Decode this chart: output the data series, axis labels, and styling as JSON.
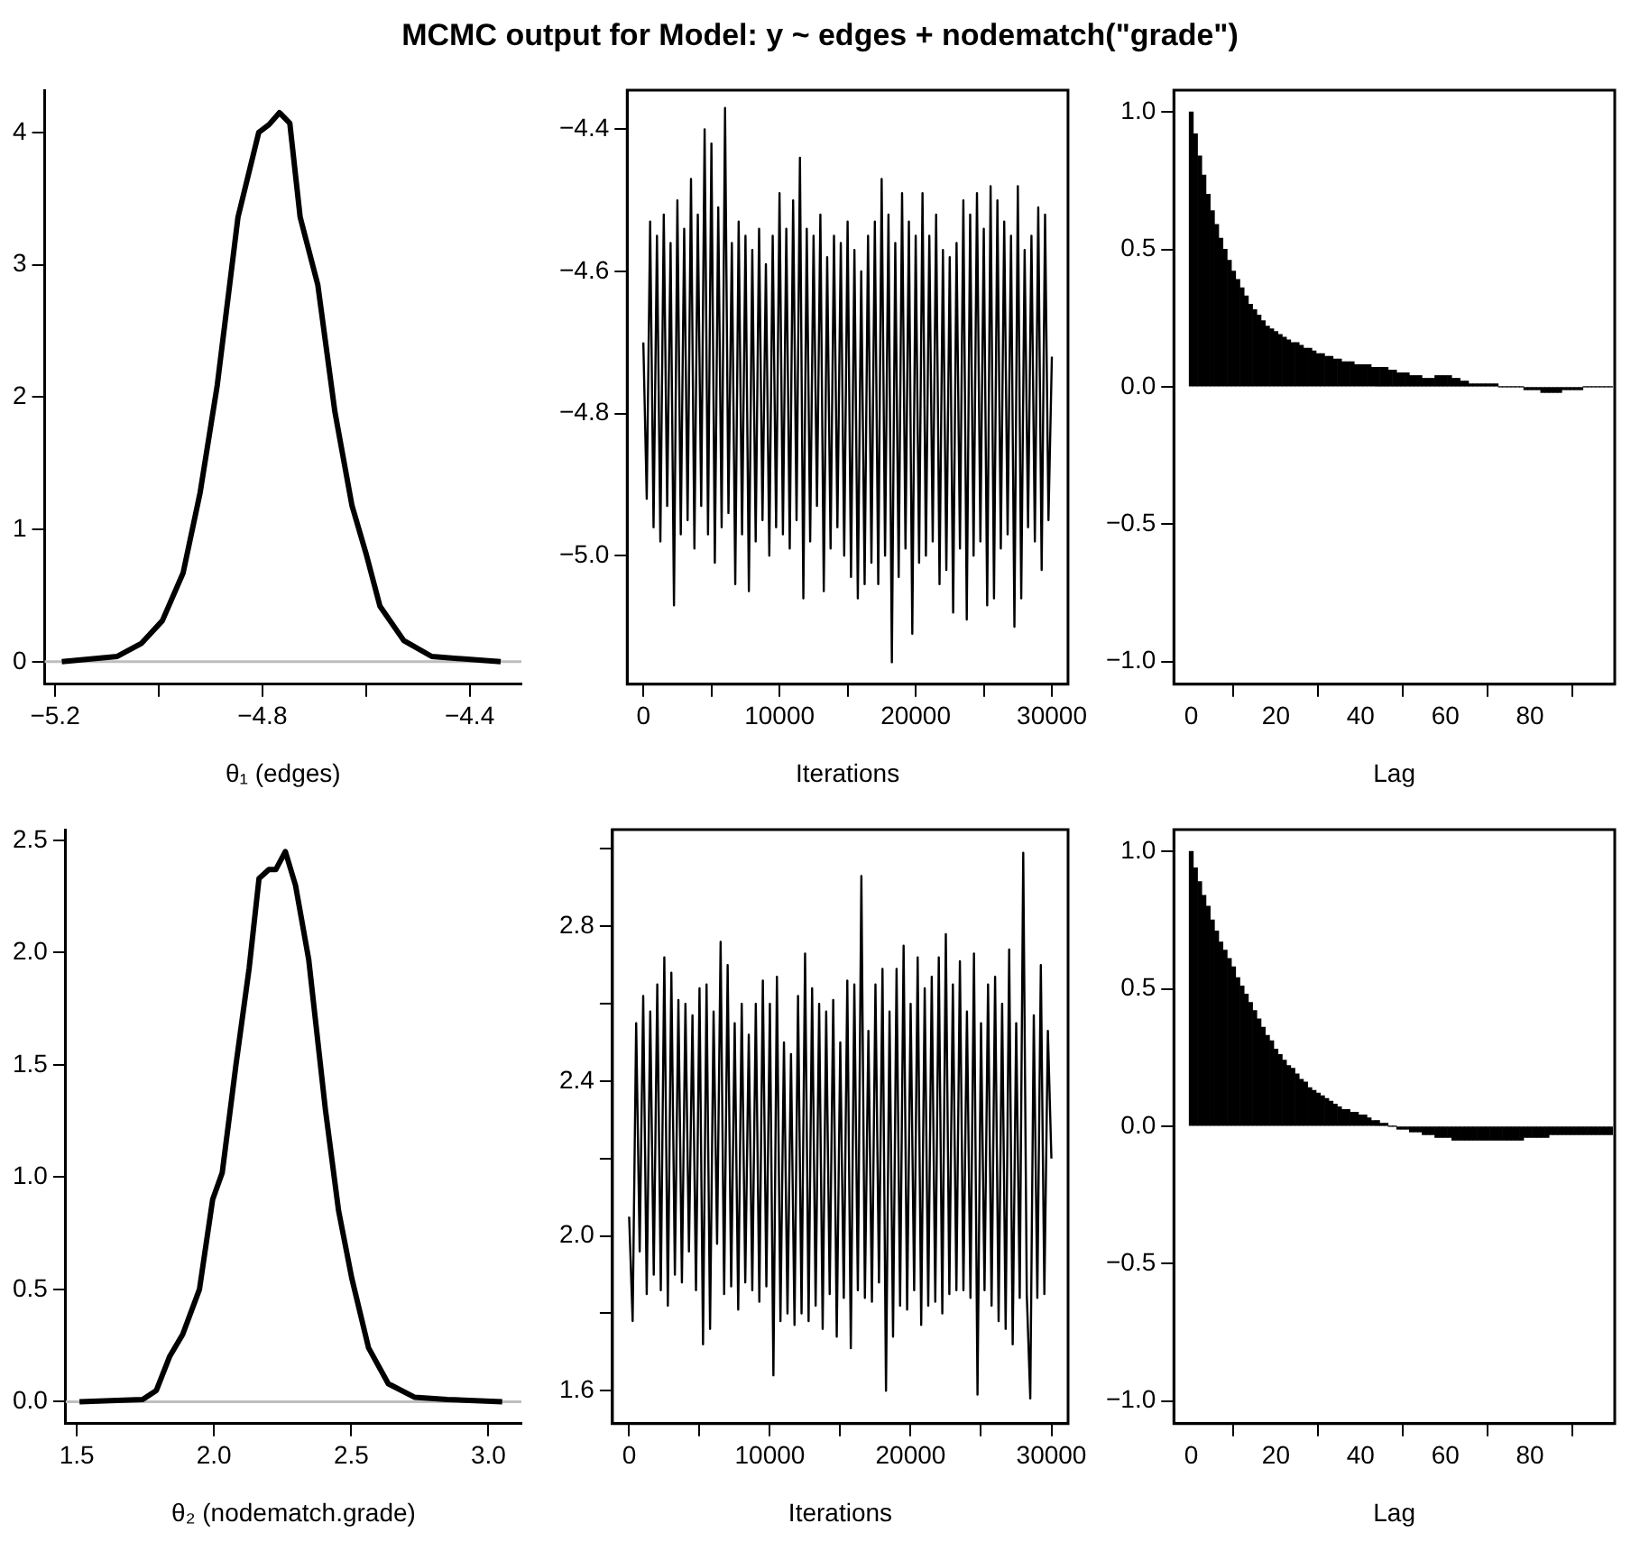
{
  "chart_data": [
    {
      "type": "line",
      "title": "MCMC output for Model: y ~ edges + nodematch(\"grade\")",
      "xlabel": "θ₁ (edges)",
      "marker": "none",
      "legend": false,
      "grid": false,
      "x": [
        -5.187,
        -5.08,
        -5.033,
        -4.993,
        -4.953,
        -4.92,
        -4.887,
        -4.847,
        -4.807,
        -4.787,
        -4.767,
        -4.747,
        -4.727,
        -4.693,
        -4.66,
        -4.627,
        -4.6,
        -4.573,
        -4.527,
        -4.473,
        -4.34
      ],
      "series": [
        {
          "color": "#000000",
          "values": [
            0.0,
            0.04,
            0.14,
            0.31,
            0.67,
            1.28,
            2.09,
            3.36,
            4.0,
            4.06,
            4.15,
            4.07,
            3.36,
            2.85,
            1.89,
            1.18,
            0.82,
            0.42,
            0.16,
            0.04,
            0.0
          ]
        }
      ],
      "xlim": [
        -5.22,
        -4.3
      ],
      "ylim": [
        -0.17,
        4.32
      ],
      "xticks": [
        {
          "value": -5.2,
          "label": "−5.2"
        },
        {
          "value": -5.0,
          "label": null
        },
        {
          "value": -4.8,
          "label": "−4.8"
        },
        {
          "value": -4.6,
          "label": null
        },
        {
          "value": -4.4,
          "label": "−4.4"
        }
      ],
      "yticks": [
        0,
        1,
        2,
        3,
        4
      ],
      "ref_lines": [
        {
          "axis": "y",
          "value": 0,
          "color": "#bebebe"
        }
      ]
    },
    {
      "type": "line",
      "xlabel": "Iterations",
      "marker": "none",
      "legend": false,
      "grid": false,
      "x": [
        0,
        250,
        500,
        750,
        1000,
        1250,
        1500,
        1750,
        2000,
        2250,
        2500,
        2750,
        3000,
        3250,
        3500,
        3750,
        4000,
        4250,
        4500,
        4750,
        5000,
        5250,
        5500,
        5750,
        6000,
        6250,
        6500,
        6750,
        7000,
        7250,
        7500,
        7750,
        8000,
        8250,
        8500,
        8750,
        9000,
        9250,
        9500,
        9750,
        10000,
        10250,
        10500,
        10750,
        11000,
        11250,
        11500,
        11750,
        12000,
        12250,
        12500,
        12750,
        13000,
        13250,
        13500,
        13750,
        14000,
        14250,
        14500,
        14750,
        15000,
        15250,
        15500,
        15750,
        16000,
        16250,
        16500,
        16750,
        17000,
        17250,
        17500,
        17750,
        18000,
        18250,
        18500,
        18750,
        19000,
        19250,
        19500,
        19750,
        20000,
        20250,
        20500,
        20750,
        21000,
        21250,
        21500,
        21750,
        22000,
        22250,
        22500,
        22750,
        23000,
        23250,
        23500,
        23750,
        24000,
        24250,
        24500,
        24750,
        25000,
        25250,
        25500,
        25750,
        26000,
        26250,
        26500,
        26750,
        27000,
        27250,
        27500,
        27750,
        28000,
        28250,
        28500,
        28750,
        29000,
        29250,
        29500,
        29750,
        30000
      ],
      "series": [
        {
          "color": "#000000",
          "values": [
            -4.7,
            -4.92,
            -4.53,
            -4.96,
            -4.55,
            -4.98,
            -4.52,
            -4.93,
            -4.56,
            -5.07,
            -4.5,
            -4.97,
            -4.54,
            -4.95,
            -4.47,
            -4.99,
            -4.52,
            -4.93,
            -4.4,
            -4.97,
            -4.42,
            -5.01,
            -4.51,
            -4.96,
            -4.37,
            -4.94,
            -4.56,
            -5.04,
            -4.53,
            -4.97,
            -4.55,
            -5.05,
            -4.57,
            -4.98,
            -4.54,
            -4.95,
            -4.59,
            -5.0,
            -4.55,
            -4.96,
            -4.49,
            -4.97,
            -4.54,
            -4.99,
            -4.5,
            -4.95,
            -4.44,
            -5.06,
            -4.54,
            -4.98,
            -4.55,
            -4.93,
            -4.52,
            -5.05,
            -4.58,
            -4.99,
            -4.55,
            -4.96,
            -4.56,
            -5.0,
            -4.53,
            -5.03,
            -4.57,
            -5.06,
            -4.6,
            -5.04,
            -4.55,
            -5.01,
            -4.53,
            -5.04,
            -4.47,
            -5.0,
            -4.52,
            -5.15,
            -4.56,
            -5.03,
            -4.49,
            -4.99,
            -4.53,
            -5.11,
            -4.55,
            -5.01,
            -4.49,
            -5.0,
            -4.55,
            -4.98,
            -4.52,
            -5.04,
            -4.57,
            -5.02,
            -4.58,
            -5.08,
            -4.56,
            -4.99,
            -4.5,
            -5.09,
            -4.52,
            -5.0,
            -4.49,
            -4.98,
            -4.54,
            -5.07,
            -4.48,
            -5.06,
            -4.5,
            -4.99,
            -4.53,
            -4.97,
            -4.55,
            -5.1,
            -4.48,
            -5.06,
            -4.57,
            -4.96,
            -4.55,
            -4.98,
            -4.51,
            -5.02,
            -4.52,
            -4.95,
            -4.72
          ]
        }
      ],
      "xlim": [
        -1185,
        31185
      ],
      "ylim": [
        -5.181,
        -4.345
      ],
      "xticks": [
        0,
        {
          "value": 5000,
          "label": null
        },
        10000,
        {
          "value": 15000,
          "label": null
        },
        20000,
        {
          "value": 25000,
          "label": null
        },
        30000
      ],
      "yticks": [
        {
          "value": -5.0,
          "label": "−5.0"
        },
        {
          "value": -4.8,
          "label": "−4.8"
        },
        {
          "value": -4.6,
          "label": "−4.6"
        },
        {
          "value": -4.4,
          "label": "−4.4"
        }
      ]
    },
    {
      "type": "bar",
      "xlabel": "Lag",
      "legend": false,
      "grid": false,
      "x": [
        0,
        1,
        2,
        3,
        4,
        5,
        6,
        7,
        8,
        9,
        10,
        11,
        12,
        13,
        14,
        15,
        16,
        17,
        18,
        19,
        20,
        21,
        22,
        23,
        24,
        25,
        26,
        27,
        28,
        29,
        30,
        31,
        32,
        33,
        34,
        35,
        36,
        37,
        38,
        39,
        40,
        41,
        42,
        43,
        44,
        45,
        46,
        47,
        48,
        49,
        50,
        51,
        52,
        53,
        54,
        55,
        56,
        57,
        58,
        59,
        60,
        61,
        62,
        63,
        64,
        65,
        66,
        67,
        68,
        69,
        70,
        71,
        72,
        73,
        74,
        75,
        76,
        77,
        78,
        79,
        80,
        81,
        82,
        83,
        84,
        85,
        86,
        87,
        88,
        89,
        90,
        91,
        92,
        93,
        94,
        95,
        96,
        97,
        98,
        99
      ],
      "series": [
        {
          "color": "#000000",
          "values": [
            1.0,
            0.92,
            0.84,
            0.77,
            0.7,
            0.64,
            0.59,
            0.54,
            0.5,
            0.46,
            0.42,
            0.39,
            0.36,
            0.33,
            0.3,
            0.28,
            0.26,
            0.24,
            0.22,
            0.21,
            0.2,
            0.19,
            0.18,
            0.17,
            0.16,
            0.16,
            0.15,
            0.14,
            0.14,
            0.13,
            0.12,
            0.12,
            0.11,
            0.11,
            0.1,
            0.1,
            0.09,
            0.09,
            0.09,
            0.08,
            0.08,
            0.08,
            0.08,
            0.07,
            0.07,
            0.07,
            0.07,
            0.06,
            0.06,
            0.05,
            0.05,
            0.05,
            0.04,
            0.04,
            0.04,
            0.03,
            0.03,
            0.03,
            0.04,
            0.04,
            0.04,
            0.04,
            0.03,
            0.03,
            0.02,
            0.02,
            0.01,
            0.01,
            0.01,
            0.01,
            0.01,
            0.01,
            0.01,
            0.0,
            0.0,
            0.0,
            0.0,
            0.0,
            0.0,
            -0.01,
            -0.01,
            -0.01,
            -0.01,
            -0.02,
            -0.02,
            -0.02,
            -0.02,
            -0.02,
            -0.01,
            -0.01,
            -0.01,
            -0.01,
            -0.01,
            0.0,
            0.0,
            0.0,
            0.0,
            0.0,
            0.0,
            0.0
          ]
        }
      ],
      "xlim": [
        -4.1,
        100
      ],
      "ylim": [
        -1.083,
        1.08
      ],
      "xticks": [
        0,
        20,
        40,
        60,
        80
      ],
      "yticks": [
        {
          "value": -1,
          "label": "−1.0"
        },
        {
          "value": -0.5,
          "label": "−0.5"
        },
        {
          "value": 0,
          "label": "0.0"
        },
        {
          "value": 0.5,
          "label": "0.5"
        },
        {
          "value": 1,
          "label": "1.0"
        }
      ]
    },
    {
      "type": "line",
      "xlabel": "θ₂ (nodematch.grade)",
      "marker": "none",
      "legend": false,
      "grid": false,
      "x": [
        1.51,
        1.74,
        1.79,
        1.838,
        1.886,
        1.947,
        1.995,
        2.03,
        2.08,
        2.128,
        2.164,
        2.2,
        2.225,
        2.26,
        2.297,
        2.345,
        2.406,
        2.454,
        2.502,
        2.563,
        2.635,
        2.73,
        2.85,
        3.05
      ],
      "series": [
        {
          "color": "#000000",
          "values": [
            0.0,
            0.01,
            0.05,
            0.2,
            0.3,
            0.5,
            0.9,
            1.02,
            1.5,
            1.93,
            2.33,
            2.37,
            2.37,
            2.45,
            2.3,
            1.97,
            1.3,
            0.85,
            0.55,
            0.24,
            0.08,
            0.02,
            0.01,
            0.0
          ]
        }
      ],
      "xlim": [
        1.46,
        3.12
      ],
      "ylim": [
        -0.098,
        2.548
      ],
      "xticks": [
        1.5,
        {
          "value": 2.0,
          "label": "2.0"
        },
        2.5,
        {
          "value": 3.0,
          "label": "3.0"
        }
      ],
      "yticks": [
        {
          "value": 0,
          "label": "0.0"
        },
        0.5,
        {
          "value": 1,
          "label": "1.0"
        },
        1.5,
        {
          "value": 2,
          "label": "2.0"
        },
        2.5
      ],
      "ref_lines": [
        {
          "axis": "y",
          "value": 0,
          "color": "#bebebe"
        }
      ]
    },
    {
      "type": "line",
      "xlabel": "Iterations",
      "marker": "none",
      "legend": false,
      "grid": false,
      "x": [
        0,
        250,
        500,
        750,
        1000,
        1250,
        1500,
        1750,
        2000,
        2250,
        2500,
        2750,
        3000,
        3250,
        3500,
        3750,
        4000,
        4250,
        4500,
        4750,
        5000,
        5250,
        5500,
        5750,
        6000,
        6250,
        6500,
        6750,
        7000,
        7250,
        7500,
        7750,
        8000,
        8250,
        8500,
        8750,
        9000,
        9250,
        9500,
        9750,
        10000,
        10250,
        10500,
        10750,
        11000,
        11250,
        11500,
        11750,
        12000,
        12250,
        12500,
        12750,
        13000,
        13250,
        13500,
        13750,
        14000,
        14250,
        14500,
        14750,
        15000,
        15250,
        15500,
        15750,
        16000,
        16250,
        16500,
        16750,
        17000,
        17250,
        17500,
        17750,
        18000,
        18250,
        18500,
        18750,
        19000,
        19250,
        19500,
        19750,
        20000,
        20250,
        20500,
        20750,
        21000,
        21250,
        21500,
        21750,
        22000,
        22250,
        22500,
        22750,
        23000,
        23250,
        23500,
        23750,
        24000,
        24250,
        24500,
        24750,
        25000,
        25250,
        25500,
        25750,
        26000,
        26250,
        26500,
        26750,
        27000,
        27250,
        27500,
        27750,
        28000,
        28250,
        28500,
        28750,
        29000,
        29250,
        29500,
        29750,
        30000
      ],
      "series": [
        {
          "color": "#000000",
          "values": [
            2.05,
            1.78,
            2.55,
            1.96,
            2.62,
            1.85,
            2.58,
            1.9,
            2.65,
            1.86,
            2.72,
            1.82,
            2.68,
            1.9,
            2.61,
            1.88,
            2.6,
            1.96,
            2.57,
            1.86,
            2.64,
            1.72,
            2.65,
            1.76,
            2.58,
            1.98,
            2.76,
            1.85,
            2.7,
            1.87,
            2.55,
            1.81,
            2.6,
            1.88,
            2.52,
            1.86,
            2.6,
            1.83,
            2.66,
            1.87,
            2.6,
            1.64,
            2.67,
            1.78,
            2.5,
            1.8,
            2.47,
            1.77,
            2.62,
            1.8,
            2.73,
            1.78,
            2.64,
            1.82,
            2.6,
            1.76,
            2.58,
            1.85,
            2.61,
            1.74,
            2.5,
            1.84,
            2.66,
            1.71,
            2.65,
            1.86,
            2.93,
            1.84,
            2.53,
            1.83,
            2.65,
            1.88,
            2.69,
            1.6,
            2.58,
            1.74,
            2.69,
            1.82,
            2.75,
            1.81,
            2.6,
            1.86,
            2.72,
            1.77,
            2.64,
            1.82,
            2.67,
            1.83,
            2.72,
            1.8,
            2.78,
            1.85,
            2.65,
            1.86,
            2.71,
            1.86,
            2.58,
            1.84,
            2.73,
            1.59,
            2.55,
            1.86,
            2.65,
            1.82,
            2.67,
            1.78,
            2.6,
            1.76,
            2.74,
            1.72,
            2.55,
            1.84,
            2.99,
            1.85,
            1.58,
            2.57,
            1.84,
            2.7,
            1.85,
            2.53,
            2.2
          ]
        }
      ],
      "xlim": [
        -1185,
        31185
      ],
      "ylim": [
        1.515,
        3.05
      ],
      "xticks": [
        0,
        {
          "value": 5000,
          "label": null
        },
        10000,
        {
          "value": 15000,
          "label": null
        },
        20000,
        {
          "value": 25000,
          "label": null
        },
        30000
      ],
      "yticks": [
        1.6,
        {
          "value": 1.8,
          "label": null
        },
        {
          "value": 2.0,
          "label": "2.0"
        },
        {
          "value": 2.2,
          "label": null
        },
        2.4,
        {
          "value": 2.6,
          "label": null
        },
        2.8,
        {
          "value": 3.0,
          "label": null
        }
      ]
    },
    {
      "type": "bar",
      "xlabel": "Lag",
      "legend": false,
      "grid": false,
      "x": [
        0,
        1,
        2,
        3,
        4,
        5,
        6,
        7,
        8,
        9,
        10,
        11,
        12,
        13,
        14,
        15,
        16,
        17,
        18,
        19,
        20,
        21,
        22,
        23,
        24,
        25,
        26,
        27,
        28,
        29,
        30,
        31,
        32,
        33,
        34,
        35,
        36,
        37,
        38,
        39,
        40,
        41,
        42,
        43,
        44,
        45,
        46,
        47,
        48,
        49,
        50,
        51,
        52,
        53,
        54,
        55,
        56,
        57,
        58,
        59,
        60,
        61,
        62,
        63,
        64,
        65,
        66,
        67,
        68,
        69,
        70,
        71,
        72,
        73,
        74,
        75,
        76,
        77,
        78,
        79,
        80,
        81,
        82,
        83,
        84,
        85,
        86,
        87,
        88,
        89,
        90,
        91,
        92,
        93,
        94,
        95,
        96,
        97,
        98,
        99
      ],
      "series": [
        {
          "color": "#000000",
          "values": [
            1.0,
            0.94,
            0.89,
            0.84,
            0.8,
            0.75,
            0.71,
            0.67,
            0.64,
            0.61,
            0.58,
            0.54,
            0.51,
            0.48,
            0.45,
            0.42,
            0.39,
            0.36,
            0.33,
            0.31,
            0.28,
            0.26,
            0.24,
            0.22,
            0.21,
            0.19,
            0.17,
            0.16,
            0.14,
            0.13,
            0.12,
            0.11,
            0.1,
            0.09,
            0.08,
            0.07,
            0.06,
            0.06,
            0.05,
            0.05,
            0.04,
            0.04,
            0.03,
            0.02,
            0.02,
            0.01,
            0.01,
            0.0,
            0.0,
            -0.01,
            -0.01,
            -0.01,
            -0.02,
            -0.02,
            -0.02,
            -0.03,
            -0.03,
            -0.03,
            -0.04,
            -0.04,
            -0.04,
            -0.04,
            -0.05,
            -0.05,
            -0.05,
            -0.05,
            -0.05,
            -0.05,
            -0.05,
            -0.05,
            -0.05,
            -0.05,
            -0.05,
            -0.05,
            -0.05,
            -0.05,
            -0.05,
            -0.05,
            -0.05,
            -0.04,
            -0.04,
            -0.04,
            -0.04,
            -0.04,
            -0.04,
            -0.03,
            -0.03,
            -0.03,
            -0.03,
            -0.03,
            -0.03,
            -0.03,
            -0.03,
            -0.03,
            -0.03,
            -0.03,
            -0.03,
            -0.03,
            -0.03,
            -0.03
          ]
        }
      ],
      "xlim": [
        -4.1,
        100
      ],
      "ylim": [
        -1.083,
        1.08
      ],
      "xticks": [
        0,
        20,
        40,
        60,
        80
      ],
      "yticks": [
        {
          "value": -1,
          "label": "−1.0"
        },
        {
          "value": -0.5,
          "label": "−0.5"
        },
        {
          "value": 0,
          "label": "0.0"
        },
        {
          "value": 0.5,
          "label": "0.5"
        },
        {
          "value": 1,
          "label": "1.0"
        }
      ]
    }
  ]
}
